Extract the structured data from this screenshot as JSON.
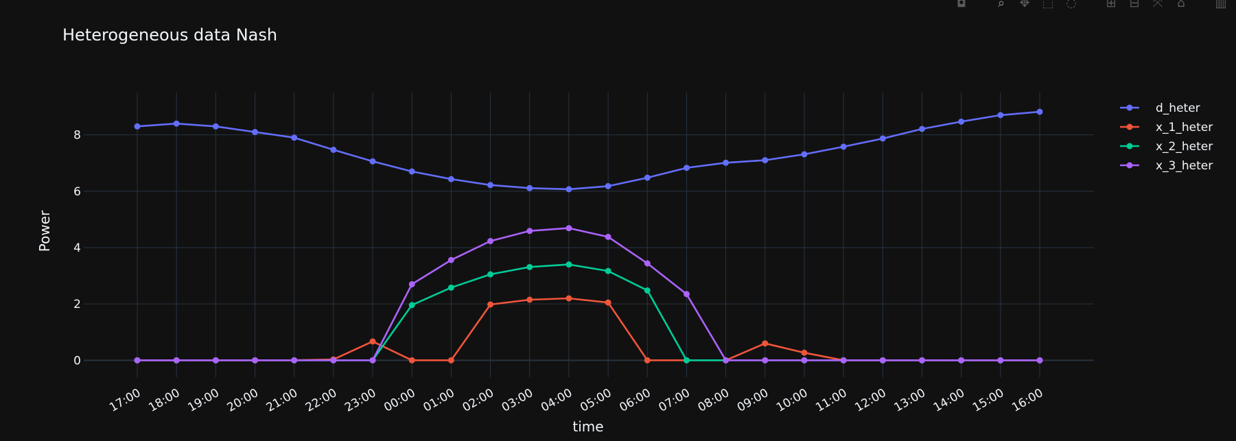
{
  "chart_data": {
    "type": "line",
    "title": "Heterogeneous data Nash",
    "xlabel": "time",
    "ylabel": "Power",
    "ylim": [
      -0.6,
      9.5
    ],
    "yticks": [
      0,
      2,
      4,
      6,
      8
    ],
    "grid": true,
    "legend_position": "top-right",
    "categories": [
      "17:00",
      "18:00",
      "19:00",
      "20:00",
      "21:00",
      "22:00",
      "23:00",
      "00:00",
      "01:00",
      "02:00",
      "03:00",
      "04:00",
      "05:00",
      "06:00",
      "07:00",
      "08:00",
      "09:00",
      "10:00",
      "11:00",
      "12:00",
      "13:00",
      "14:00",
      "15:00",
      "16:00"
    ],
    "series": [
      {
        "name": "d_heter",
        "color": "#636efa",
        "values": [
          8.3,
          8.4,
          8.3,
          8.1,
          7.9,
          7.47,
          7.06,
          6.7,
          6.43,
          6.22,
          6.11,
          6.07,
          6.18,
          6.48,
          6.83,
          7.01,
          7.1,
          7.31,
          7.58,
          7.87,
          8.21,
          8.47,
          8.7,
          8.82
        ]
      },
      {
        "name": "x_1_heter",
        "color": "#ef553b",
        "values": [
          0,
          0,
          0,
          0,
          0,
          0.03,
          0.67,
          0,
          0,
          1.98,
          2.15,
          2.2,
          2.05,
          0,
          0,
          0,
          0.6,
          0.27,
          0,
          0,
          0,
          0,
          0,
          0
        ]
      },
      {
        "name": "x_2_heter",
        "color": "#00cc96",
        "values": [
          0,
          0,
          0,
          0,
          0,
          0,
          0,
          1.96,
          2.58,
          3.05,
          3.31,
          3.4,
          3.17,
          2.48,
          0,
          0,
          0,
          0,
          0,
          0,
          0,
          0,
          0,
          0
        ]
      },
      {
        "name": "x_3_heter",
        "color": "#ab63fa",
        "values": [
          0,
          0,
          0,
          0,
          0,
          0,
          0,
          2.7,
          3.56,
          4.23,
          4.59,
          4.69,
          4.38,
          3.44,
          2.35,
          0,
          0,
          0,
          0,
          0,
          0,
          0,
          0,
          0
        ]
      }
    ]
  },
  "theme": {
    "background": "#111111",
    "grid_color": "#283442",
    "zero_line_color": "#283442",
    "text_color": "#f2f5fa"
  },
  "modebar": {
    "icons": [
      "camera-icon",
      "zoom-icon",
      "pan-icon",
      "box-select-icon",
      "lasso-select-icon",
      "zoom-in-icon",
      "zoom-out-icon",
      "autoscale-icon",
      "reset-axes-icon",
      "plotly-logo-icon"
    ]
  }
}
